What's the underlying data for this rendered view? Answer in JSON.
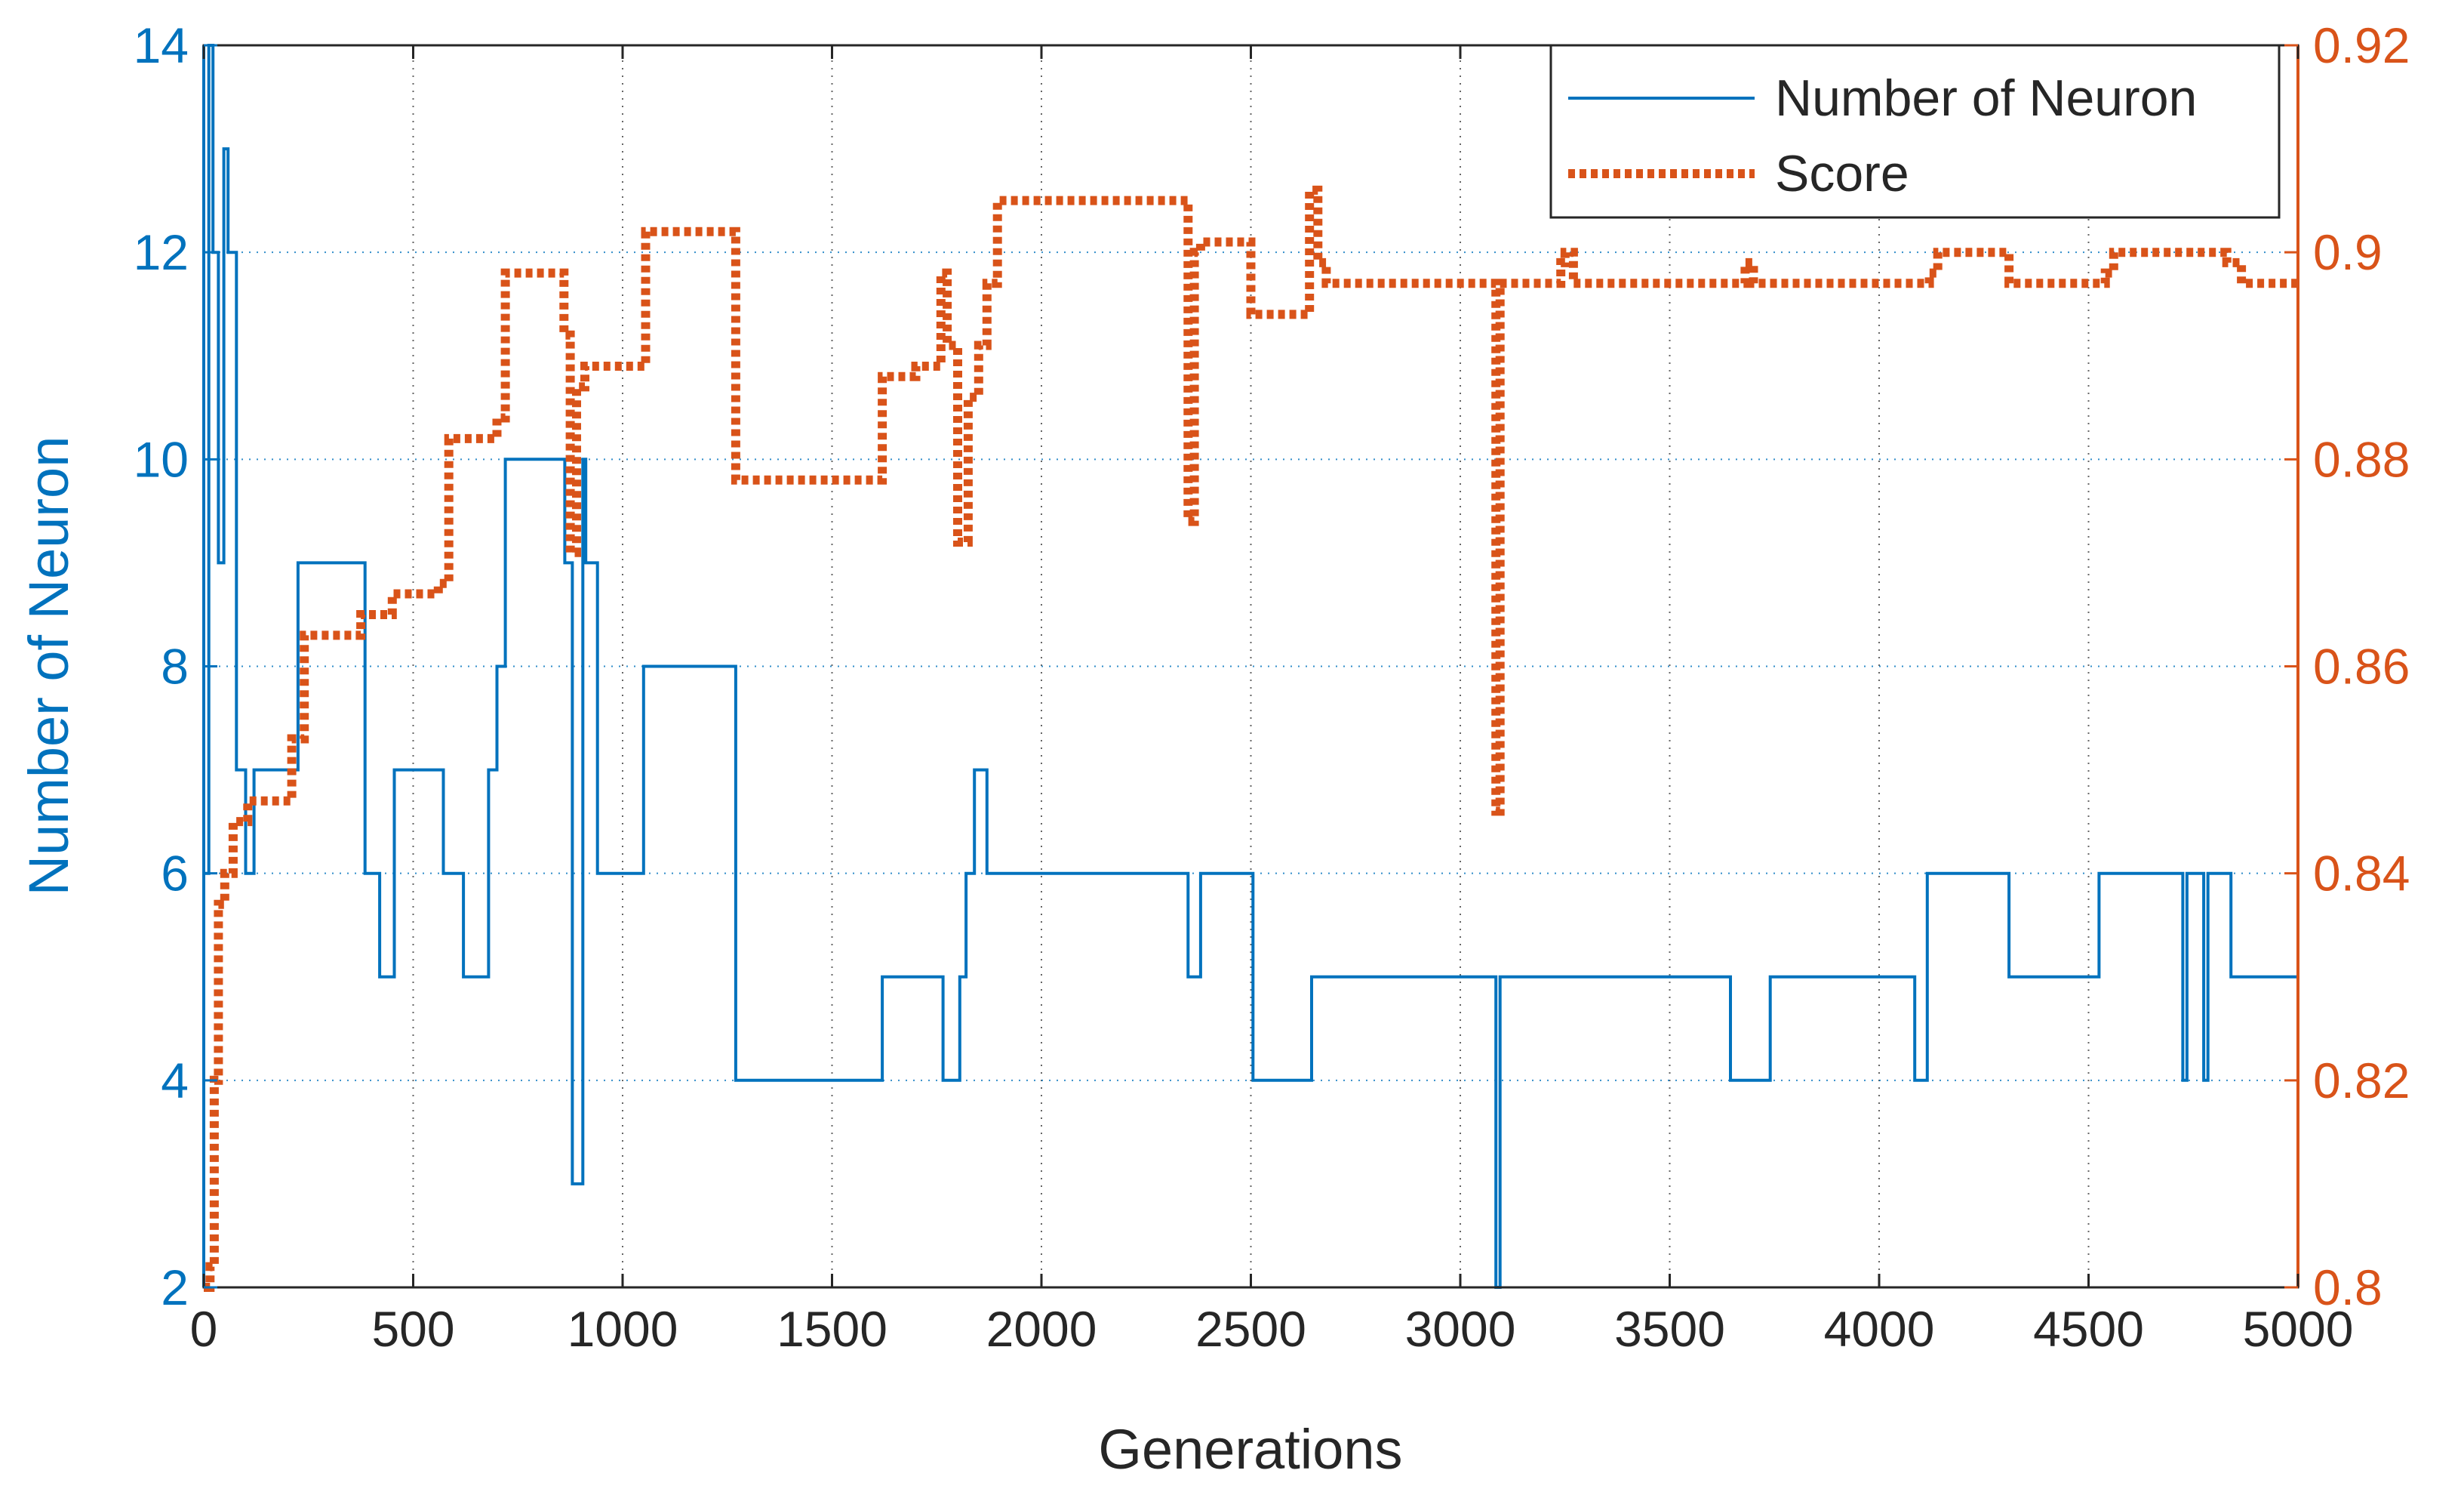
{
  "chart_data": {
    "type": "line",
    "title": "",
    "xlabel": "Generations",
    "ylabel_left": "Number of Neuron",
    "ylabel_right": "",
    "xlim": [
      0,
      5000
    ],
    "xticks": [
      0,
      500,
      1000,
      1500,
      2000,
      2500,
      3000,
      3500,
      4000,
      4500,
      5000
    ],
    "xtick_labels": [
      "0",
      "500",
      "1000",
      "1500",
      "2000",
      "2500",
      "3000",
      "3500",
      "4000",
      "4500",
      "5000"
    ],
    "ylim_left": [
      2,
      14
    ],
    "yticks_left": [
      2,
      4,
      6,
      8,
      10,
      12,
      14
    ],
    "ytick_labels_left": [
      "2",
      "4",
      "6",
      "8",
      "10",
      "12",
      "14"
    ],
    "ylim_right": [
      0.8,
      0.92
    ],
    "yticks_right": [
      0.8,
      0.82,
      0.84,
      0.86,
      0.88,
      0.9,
      0.92
    ],
    "ytick_labels_right": [
      "0.8",
      "0.82",
      "0.84",
      "0.86",
      "0.88",
      "0.9",
      "0.92"
    ],
    "grid": true,
    "legend_position": "top-right",
    "colors": {
      "neuron": "#0072BD",
      "score": "#D95319",
      "axis": "#262626",
      "grid": "#262626"
    },
    "series": [
      {
        "name": "Number of Neuron",
        "axis": "left",
        "style": "solid",
        "step": true,
        "x": [
          0,
          12,
          22,
          35,
          48,
          58,
          78,
          100,
          120,
          215,
          225,
          385,
          420,
          455,
          560,
          572,
          620,
          680,
          700,
          720,
          855,
          862,
          880,
          905,
          912,
          940,
          1050,
          1270,
          1610,
          1620,
          1765,
          1805,
          1820,
          1840,
          1870,
          2350,
          2380,
          2505,
          2645,
          3085,
          3095,
          3645,
          3740,
          4085,
          4115,
          4310,
          4525,
          4725,
          4735,
          4775,
          4785,
          4840,
          5000
        ],
        "y": [
          6,
          14,
          12,
          9,
          13,
          12,
          7,
          6,
          7,
          7,
          9,
          6,
          5,
          7,
          7,
          6,
          5,
          7,
          8,
          10,
          10,
          9,
          3,
          10,
          9,
          6,
          8,
          4,
          4,
          5,
          4,
          5,
          6,
          7,
          6,
          5,
          6,
          4,
          5,
          2,
          5,
          4,
          5,
          4,
          6,
          5,
          6,
          4,
          6,
          4,
          6,
          5,
          5
        ]
      },
      {
        "name": "Score",
        "axis": "right",
        "style": "dotted",
        "step": true,
        "x": [
          0,
          15,
          25,
          35,
          50,
          70,
          105,
          210,
          240,
          375,
          450,
          560,
          585,
          700,
          720,
          860,
          875,
          890,
          910,
          1055,
          1270,
          1620,
          1700,
          1760,
          1775,
          1800,
          1825,
          1850,
          1870,
          1895,
          2350,
          2365,
          2380,
          2500,
          2640,
          2660,
          2680,
          3085,
          3095,
          3110,
          3240,
          3250,
          3270,
          3645,
          3660,
          3680,
          3700,
          4100,
          4120,
          4140,
          4310,
          4540,
          4560,
          4830,
          4865,
          5000
        ],
        "y": [
          0.8,
          0.802,
          0.82,
          0.837,
          0.84,
          0.845,
          0.847,
          0.853,
          0.863,
          0.865,
          0.867,
          0.868,
          0.882,
          0.884,
          0.898,
          0.892,
          0.871,
          0.887,
          0.889,
          0.902,
          0.878,
          0.888,
          0.889,
          0.898,
          0.891,
          0.872,
          0.886,
          0.891,
          0.897,
          0.905,
          0.874,
          0.9,
          0.901,
          0.894,
          0.906,
          0.899,
          0.897,
          0.846,
          0.897,
          0.897,
          0.899,
          0.9,
          0.897,
          0.897,
          0.897,
          0.899,
          0.897,
          0.897,
          0.898,
          0.9,
          0.897,
          0.898,
          0.9,
          0.899,
          0.897,
          0.897
        ]
      }
    ]
  }
}
